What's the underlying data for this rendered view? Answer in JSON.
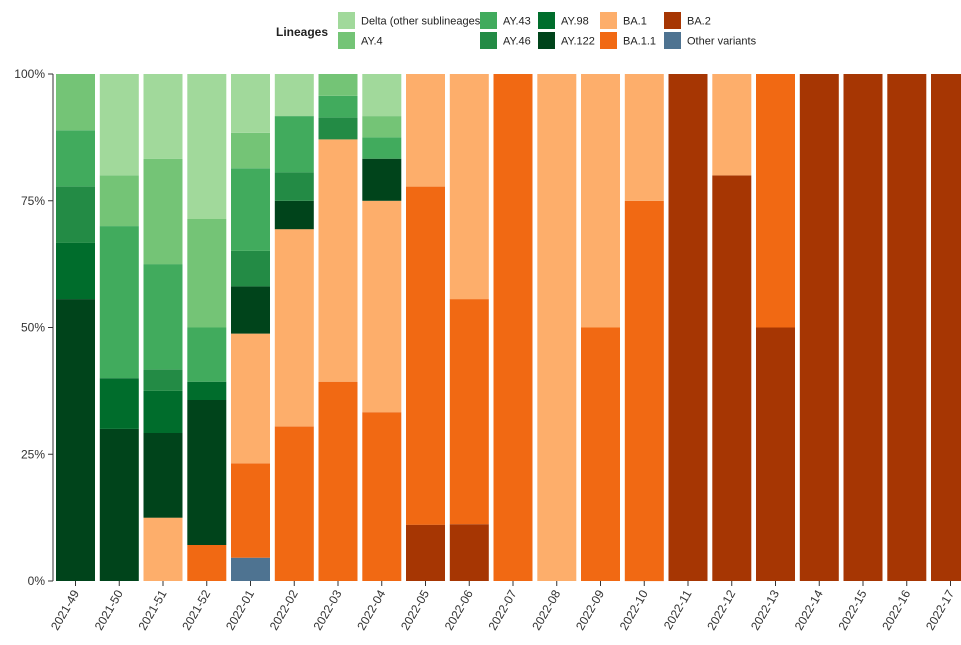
{
  "chart_data": {
    "type": "bar",
    "stacked": true,
    "normalized": true,
    "legend": {
      "title": "Lineages",
      "placement": "top",
      "columns": [
        [
          "Delta (other sublineages)",
          "AY.4"
        ],
        [
          "AY.43",
          "AY.46"
        ],
        [
          "AY.98",
          "AY.122"
        ],
        [
          "BA.1",
          "BA.1.1"
        ],
        [
          "BA.2",
          "Other variants"
        ]
      ]
    },
    "categories": [
      "2021-49",
      "2021-50",
      "2021-51",
      "2021-52",
      "2022-01",
      "2022-02",
      "2022-03",
      "2022-04",
      "2022-05",
      "2022-06",
      "2022-07",
      "2022-08",
      "2022-09",
      "2022-10",
      "2022-11",
      "2022-12",
      "2022-13",
      "2022-14",
      "2022-15",
      "2022-16",
      "2022-17"
    ],
    "y_ticks": [
      "0%",
      "25%",
      "50%",
      "75%",
      "100%"
    ],
    "ylim": [
      0,
      100
    ],
    "stack_order": [
      "Other variants",
      "BA.2",
      "BA.1.1",
      "BA.1",
      "AY.122",
      "AY.98",
      "AY.46",
      "AY.43",
      "AY.4",
      "Delta (other sublineages)"
    ],
    "series": [
      {
        "name": "Delta (other sublineages)",
        "color": "#a1d99b",
        "values": [
          0,
          20,
          16.7,
          28.6,
          11.6,
          8.3,
          0,
          8.3,
          0,
          0,
          0,
          0,
          0,
          0,
          0,
          0,
          0,
          0,
          0,
          0,
          0
        ]
      },
      {
        "name": "AY.4",
        "color": "#74c476",
        "values": [
          11.1,
          10,
          20.8,
          21.4,
          7.0,
          0,
          4.3,
          4.2,
          0,
          0,
          0,
          0,
          0,
          0,
          0,
          0,
          0,
          0,
          0,
          0,
          0
        ]
      },
      {
        "name": "AY.43",
        "color": "#41ab5d",
        "values": [
          11.1,
          30,
          20.8,
          10.7,
          16.3,
          11.1,
          4.3,
          4.2,
          0,
          0,
          0,
          0,
          0,
          0,
          0,
          0,
          0,
          0,
          0,
          0,
          0
        ]
      },
      {
        "name": "AY.46",
        "color": "#238b45",
        "values": [
          11.1,
          0,
          4.2,
          0,
          7.0,
          5.6,
          4.3,
          0,
          0,
          0,
          0,
          0,
          0,
          0,
          0,
          0,
          0,
          0,
          0,
          0,
          0
        ]
      },
      {
        "name": "AY.98",
        "color": "#006d2c",
        "values": [
          11.1,
          10,
          8.3,
          3.6,
          0,
          0,
          0,
          0,
          0,
          0,
          0,
          0,
          0,
          0,
          0,
          0,
          0,
          0,
          0,
          0,
          0
        ]
      },
      {
        "name": "AY.122",
        "color": "#00441b",
        "values": [
          55.6,
          30,
          16.7,
          28.6,
          9.3,
          5.6,
          0,
          8.3,
          0,
          0,
          0,
          0,
          0,
          0,
          0,
          0,
          0,
          0,
          0,
          0,
          0
        ]
      },
      {
        "name": "BA.1",
        "color": "#fdae6b",
        "values": [
          0,
          0,
          12.5,
          0,
          25.6,
          38.9,
          47.8,
          41.7,
          22.2,
          44.4,
          0,
          100,
          50,
          25,
          0,
          20,
          0,
          0,
          0,
          0,
          0
        ]
      },
      {
        "name": "BA.1.1",
        "color": "#f16913",
        "values": [
          0,
          0,
          0,
          7.1,
          18.6,
          30.5,
          39.3,
          33.3,
          66.7,
          44.4,
          100,
          0,
          50,
          75,
          0,
          0,
          50,
          0,
          0,
          0,
          0
        ]
      },
      {
        "name": "BA.2",
        "color": "#a63603",
        "values": [
          0,
          0,
          0,
          0,
          0,
          0,
          0,
          0,
          11.1,
          11.2,
          0,
          0,
          0,
          0,
          100,
          80,
          50,
          100,
          100,
          100,
          100
        ]
      },
      {
        "name": "Other variants",
        "color": "#4e7391",
        "values": [
          0,
          0,
          0,
          0,
          4.6,
          0,
          0,
          0,
          0,
          0,
          0,
          0,
          0,
          0,
          0,
          0,
          0,
          0,
          0,
          0,
          0
        ]
      }
    ]
  }
}
